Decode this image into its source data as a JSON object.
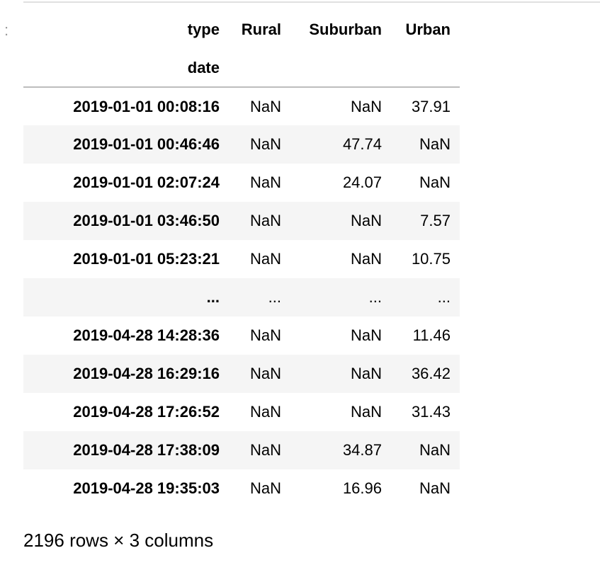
{
  "prompt_marker": ":",
  "table": {
    "columns_label": "type",
    "index_label": "date",
    "columns": [
      "Rural",
      "Suburban",
      "Urban"
    ],
    "rows": [
      {
        "index": "2019-01-01 00:08:16",
        "cells": [
          "NaN",
          "NaN",
          "37.91"
        ]
      },
      {
        "index": "2019-01-01 00:46:46",
        "cells": [
          "NaN",
          "47.74",
          "NaN"
        ]
      },
      {
        "index": "2019-01-01 02:07:24",
        "cells": [
          "NaN",
          "24.07",
          "NaN"
        ]
      },
      {
        "index": "2019-01-01 03:46:50",
        "cells": [
          "NaN",
          "NaN",
          "7.57"
        ]
      },
      {
        "index": "2019-01-01 05:23:21",
        "cells": [
          "NaN",
          "NaN",
          "10.75"
        ]
      },
      {
        "index": "...",
        "cells": [
          "...",
          "...",
          "..."
        ]
      },
      {
        "index": "2019-04-28 14:28:36",
        "cells": [
          "NaN",
          "NaN",
          "11.46"
        ]
      },
      {
        "index": "2019-04-28 16:29:16",
        "cells": [
          "NaN",
          "NaN",
          "36.42"
        ]
      },
      {
        "index": "2019-04-28 17:26:52",
        "cells": [
          "NaN",
          "NaN",
          "31.43"
        ]
      },
      {
        "index": "2019-04-28 17:38:09",
        "cells": [
          "NaN",
          "34.87",
          "NaN"
        ]
      },
      {
        "index": "2019-04-28 19:35:03",
        "cells": [
          "NaN",
          "16.96",
          "NaN"
        ]
      }
    ]
  },
  "shape_note": "2196 rows × 3 columns"
}
